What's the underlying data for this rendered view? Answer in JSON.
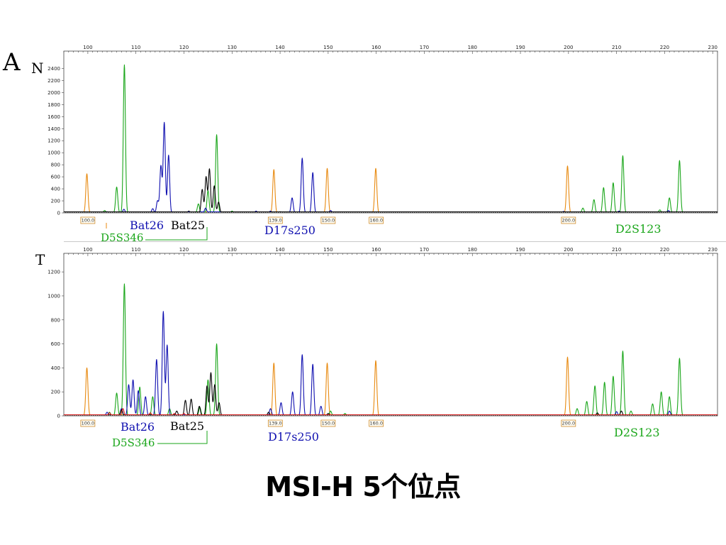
{
  "slide": {
    "figure_letter": "A",
    "title": "MSI-H 5个位点"
  },
  "chart_data": [
    {
      "type": "line",
      "panel_label": "N",
      "xlim": [
        95,
        231
      ],
      "x_ticks": [
        100,
        110,
        120,
        130,
        140,
        150,
        160,
        170,
        180,
        190,
        200,
        210,
        220,
        230
      ],
      "ylim": [
        0,
        2500
      ],
      "y_ticks": [
        0,
        200,
        400,
        600,
        800,
        1000,
        1200,
        1400,
        1600,
        1800,
        2000,
        2200,
        2400
      ],
      "colors": {
        "green": "#1aa61a",
        "blue": "#1010b0",
        "black": "#000000",
        "orange": "#e88a10",
        "red": "#d01010"
      },
      "series": [
        {
          "color": "orange",
          "peaks": [
            [
              99.8,
              650
            ],
            [
              138.7,
              720
            ],
            [
              149.8,
              740
            ],
            [
              159.9,
              740
            ],
            [
              199.8,
              780
            ]
          ]
        },
        {
          "color": "green",
          "peaks": [
            [
              103.5,
              40
            ],
            [
              106.0,
              430
            ],
            [
              107.6,
              2460
            ],
            [
              123.0,
              150
            ],
            [
              125.0,
              370
            ],
            [
              126.8,
              1300
            ],
            [
              130.0,
              30
            ],
            [
              203.0,
              80
            ],
            [
              205.3,
              220
            ],
            [
              207.3,
              420
            ],
            [
              209.3,
              500
            ],
            [
              211.3,
              950
            ],
            [
              219.0,
              50
            ],
            [
              221.0,
              250
            ],
            [
              223.1,
              870
            ]
          ]
        },
        {
          "color": "blue",
          "peaks": [
            [
              104.0,
              20
            ],
            [
              107.5,
              60
            ],
            [
              113.5,
              70
            ],
            [
              114.5,
              200
            ],
            [
              115.2,
              780
            ],
            [
              115.9,
              1500
            ],
            [
              116.8,
              960
            ],
            [
              124.5,
              80
            ],
            [
              135.0,
              30
            ],
            [
              138.0,
              30
            ],
            [
              142.5,
              250
            ],
            [
              144.6,
              910
            ],
            [
              146.8,
              670
            ],
            [
              150.5,
              40
            ],
            [
              199.0,
              25
            ],
            [
              210.5,
              30
            ],
            [
              220.8,
              40
            ]
          ]
        },
        {
          "color": "black",
          "peaks": [
            [
              121.0,
              30
            ],
            [
              123.8,
              390
            ],
            [
              124.6,
              600
            ],
            [
              125.3,
              730
            ],
            [
              126.3,
              450
            ],
            [
              127.2,
              180
            ],
            [
              140.0,
              20
            ]
          ]
        }
      ],
      "bins": [
        {
          "label": "100.0",
          "x": 100
        },
        {
          "label": "139.0",
          "x": 139
        },
        {
          "label": "150.0",
          "x": 150
        },
        {
          "label": "160.0",
          "x": 160
        },
        {
          "label": "200.0",
          "x": 200
        }
      ],
      "annotations": [
        {
          "text": "Bat26",
          "color": "blue"
        },
        {
          "text": "Bat25",
          "color": "black"
        },
        {
          "text": "D5S346",
          "color": "green"
        },
        {
          "text": "D17s250",
          "color": "blue"
        },
        {
          "text": "D2S123",
          "color": "green"
        }
      ]
    },
    {
      "type": "line",
      "panel_label": "T",
      "xlim": [
        95,
        231
      ],
      "x_ticks": [
        100,
        110,
        120,
        130,
        140,
        150,
        160,
        170,
        180,
        190,
        200,
        210,
        220,
        230
      ],
      "ylim": [
        0,
        1260
      ],
      "y_ticks": [
        0,
        200,
        400,
        600,
        800,
        1000,
        1200
      ],
      "colors": {
        "green": "#1aa61a",
        "blue": "#1010b0",
        "black": "#000000",
        "orange": "#e88a10",
        "red": "#d01010"
      },
      "series": [
        {
          "color": "orange",
          "peaks": [
            [
              99.8,
              400
            ],
            [
              138.7,
              440
            ],
            [
              149.8,
              440
            ],
            [
              159.9,
              460
            ],
            [
              199.8,
              490
            ]
          ]
        },
        {
          "color": "green",
          "peaks": [
            [
              104.5,
              30
            ],
            [
              106.0,
              190
            ],
            [
              107.6,
              1100
            ],
            [
              110.8,
              240
            ],
            [
              113.5,
              160
            ],
            [
              117.0,
              60
            ],
            [
              123.3,
              70
            ],
            [
              125.0,
              300
            ],
            [
              126.8,
              600
            ],
            [
              150.5,
              40
            ],
            [
              153.5,
              20
            ],
            [
              201.8,
              60
            ],
            [
              203.8,
              120
            ],
            [
              205.5,
              250
            ],
            [
              207.5,
              280
            ],
            [
              209.3,
              330
            ],
            [
              211.3,
              540
            ],
            [
              213.0,
              40
            ],
            [
              217.5,
              100
            ],
            [
              219.3,
              200
            ],
            [
              221.0,
              160
            ],
            [
              223.1,
              480
            ]
          ]
        },
        {
          "color": "blue",
          "peaks": [
            [
              104.0,
              30
            ],
            [
              107.0,
              60
            ],
            [
              108.5,
              260
            ],
            [
              109.4,
              300
            ],
            [
              110.5,
              210
            ],
            [
              112.0,
              160
            ],
            [
              114.3,
              470
            ],
            [
              115.7,
              870
            ],
            [
              116.5,
              590
            ],
            [
              138.0,
              60
            ],
            [
              140.2,
              110
            ],
            [
              142.6,
              200
            ],
            [
              144.6,
              510
            ],
            [
              146.8,
              430
            ],
            [
              148.5,
              80
            ],
            [
              210.0,
              35
            ],
            [
              221.0,
              40
            ]
          ]
        },
        {
          "color": "black",
          "peaks": [
            [
              107.0,
              50
            ],
            [
              118.5,
              40
            ],
            [
              120.3,
              130
            ],
            [
              121.5,
              140
            ],
            [
              123.2,
              80
            ],
            [
              124.8,
              250
            ],
            [
              125.6,
              360
            ],
            [
              126.4,
              260
            ],
            [
              127.3,
              110
            ],
            [
              137.6,
              30
            ],
            [
              150.0,
              20
            ],
            [
              206.0,
              25
            ],
            [
              211.0,
              40
            ]
          ]
        },
        {
          "color": "red",
          "peaks": [
            [
              104.5,
              25
            ],
            [
              107.3,
              60
            ],
            [
              113.0,
              25
            ],
            [
              118.0,
              20
            ],
            [
              120.0,
              20
            ]
          ]
        }
      ],
      "bins": [
        {
          "label": "100.0",
          "x": 100
        },
        {
          "label": "139.0",
          "x": 139
        },
        {
          "label": "150.0",
          "x": 150
        },
        {
          "label": "160.0",
          "x": 160
        },
        {
          "label": "200.0",
          "x": 200
        }
      ],
      "annotations": [
        {
          "text": "Bat26",
          "color": "blue"
        },
        {
          "text": "Bat25",
          "color": "black"
        },
        {
          "text": "D5S346",
          "color": "green"
        },
        {
          "text": "D17s250",
          "color": "blue"
        },
        {
          "text": "D2S123",
          "color": "green"
        }
      ]
    }
  ]
}
